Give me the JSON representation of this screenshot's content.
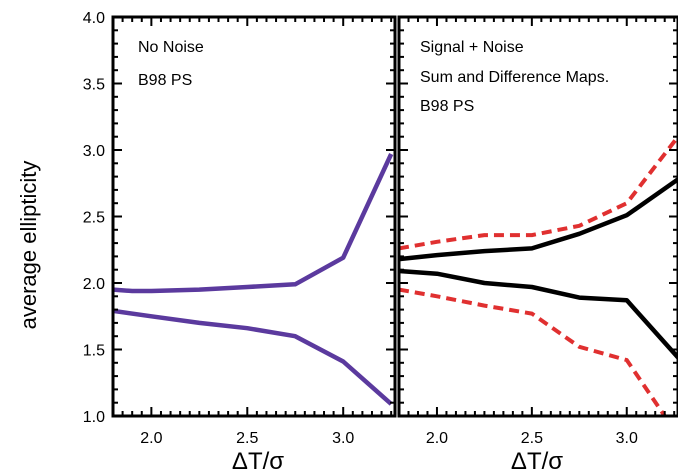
{
  "chart_data": [
    {
      "type": "line",
      "xlabel": "ΔT/σ",
      "ylabel": "average ellipticity",
      "xlim": [
        1.8,
        3.27
      ],
      "ylim": [
        1.0,
        4.0
      ],
      "x_ticks": [
        "2.0",
        "2.5",
        "3.0"
      ],
      "y_ticks": [
        "1.0",
        "1.5",
        "2.0",
        "2.5",
        "3.0",
        "3.5",
        "4.0"
      ],
      "annotations": [
        "No Noise",
        "B98 PS"
      ],
      "series": [
        {
          "color": "#5b3a9e",
          "style": "solid",
          "x": [
            1.8,
            1.9,
            2.0,
            2.25,
            2.5,
            2.75,
            3.0,
            3.25
          ],
          "y": [
            1.95,
            1.94,
            1.94,
            1.95,
            1.97,
            1.99,
            2.19,
            2.97
          ]
        },
        {
          "color": "#5b3a9e",
          "style": "solid",
          "x": [
            1.8,
            2.0,
            2.25,
            2.5,
            2.75,
            3.0,
            3.25
          ],
          "y": [
            1.79,
            1.75,
            1.7,
            1.66,
            1.6,
            1.41,
            1.09
          ]
        }
      ]
    },
    {
      "type": "line",
      "xlabel": "ΔT/σ",
      "xlim": [
        1.8,
        3.27
      ],
      "ylim": [
        1.0,
        4.0
      ],
      "x_ticks": [
        "2.0",
        "2.5",
        "3.0"
      ],
      "annotations": [
        "Signal + Noise",
        "Sum and Difference Maps.",
        "B98 PS"
      ],
      "series": [
        {
          "color": "#e03030",
          "style": "dashed",
          "x": [
            1.8,
            2.0,
            2.25,
            2.5,
            2.75,
            3.0,
            3.27
          ],
          "y": [
            2.26,
            2.31,
            2.36,
            2.36,
            2.43,
            2.6,
            3.1
          ]
        },
        {
          "color": "#000000",
          "style": "solid",
          "x": [
            1.8,
            2.0,
            2.25,
            2.5,
            2.75,
            3.0,
            3.27
          ],
          "y": [
            2.18,
            2.21,
            2.24,
            2.26,
            2.37,
            2.51,
            2.78
          ]
        },
        {
          "color": "#000000",
          "style": "solid",
          "x": [
            1.8,
            2.0,
            2.25,
            2.5,
            2.75,
            3.0,
            3.27
          ],
          "y": [
            2.09,
            2.07,
            2.0,
            1.97,
            1.89,
            1.87,
            1.44
          ]
        },
        {
          "color": "#e03030",
          "style": "dashed",
          "x": [
            1.8,
            2.0,
            2.25,
            2.5,
            2.75,
            3.0,
            3.2
          ],
          "y": [
            1.95,
            1.9,
            1.83,
            1.77,
            1.52,
            1.42,
            1.0
          ]
        }
      ]
    }
  ]
}
